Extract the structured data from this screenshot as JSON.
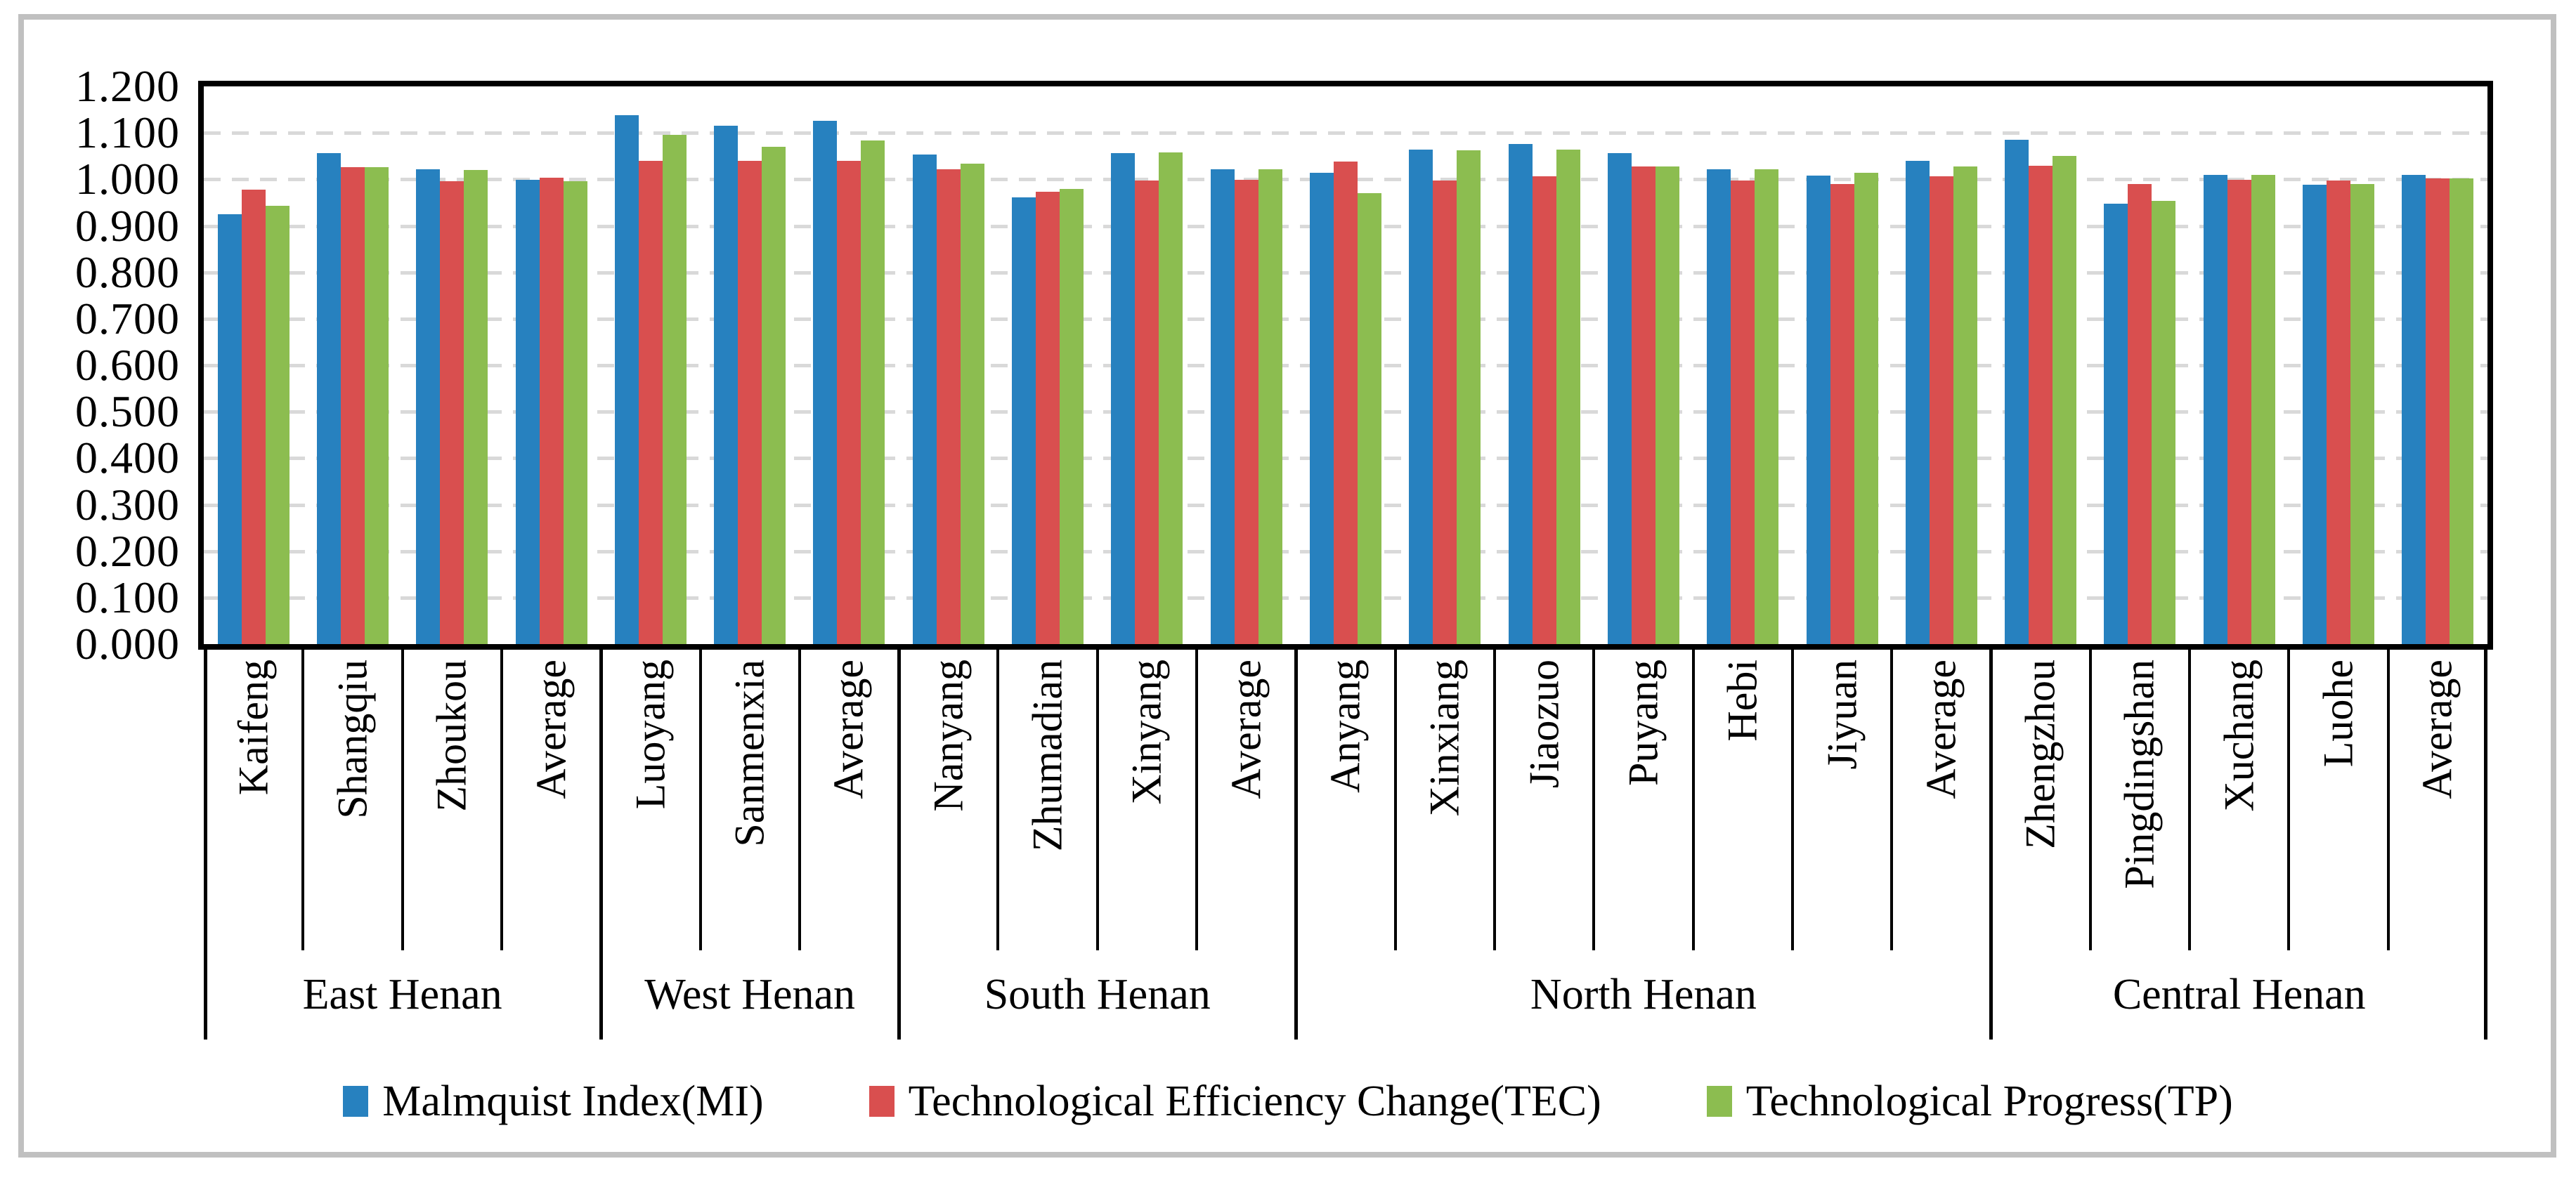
{
  "figure": {
    "frame_color": "#c0c0c0",
    "plot_border_color": "#000000",
    "gridline_color": "#d9d9d9",
    "background": "#ffffff"
  },
  "legend": [
    {
      "label": "Malmquist Index(MI)",
      "color": "#2781BF"
    },
    {
      "label": "Technological Efficiency Change(TEC)",
      "color": "#D94F4F"
    },
    {
      "label": "Technological Progress(TP)",
      "color": "#8CBD50"
    }
  ],
  "chart_data": {
    "type": "bar",
    "title": "",
    "xlabel": "",
    "ylabel": "",
    "ylim": [
      0,
      1.2
    ],
    "ytick_step": 0.1,
    "ytick_labels": [
      "0.000",
      "0.100",
      "0.200",
      "0.300",
      "0.400",
      "0.500",
      "0.600",
      "0.700",
      "0.800",
      "0.900",
      "1.000",
      "1.100",
      "1.200"
    ],
    "grid": "horizontal-dashed",
    "legend_position": "bottom",
    "categories": [
      "Kaifeng",
      "Shangqiu",
      "Zhoukou",
      "Average",
      "Luoyang",
      "Sanmenxia",
      "Average",
      "Nanyang",
      "Zhumadian",
      "Xinyang",
      "Average",
      "Anyang",
      "Xinxiang",
      "Jiaozuo",
      "Puyang",
      "Hebi",
      "Jiyuan",
      "Average",
      "Zhengzhou",
      "Pingdingshan",
      "Xuchang",
      "Luohe",
      "Average"
    ],
    "region_groups": [
      {
        "label": "East Henan",
        "span": 4
      },
      {
        "label": "West Henan",
        "span": 3
      },
      {
        "label": "South Henan",
        "span": 4
      },
      {
        "label": "North Henan",
        "span": 7
      },
      {
        "label": "Central Henan",
        "span": 5
      }
    ],
    "series": [
      {
        "name": "Malmquist Index(MI)",
        "color": "#2781BF",
        "values": [
          0.925,
          1.057,
          1.021,
          0.999,
          1.138,
          1.115,
          1.126,
          1.053,
          0.961,
          1.056,
          1.021,
          1.014,
          1.064,
          1.076,
          1.057,
          1.021,
          1.008,
          1.04,
          1.085,
          0.948,
          1.01,
          0.989,
          1.01
        ]
      },
      {
        "name": "Technological Efficiency Change(TEC)",
        "color": "#D94F4F",
        "values": [
          0.978,
          1.026,
          0.996,
          1.004,
          1.04,
          1.04,
          1.04,
          1.021,
          0.974,
          0.997,
          0.999,
          1.039,
          0.997,
          1.006,
          1.028,
          0.997,
          0.99,
          1.006,
          1.029,
          0.99,
          0.999,
          0.998,
          1.002
        ]
      },
      {
        "name": "Technological Progress(TP)",
        "color": "#8CBD50",
        "values": [
          0.943,
          1.026,
          1.02,
          0.996,
          1.095,
          1.07,
          1.083,
          1.034,
          0.979,
          1.058,
          1.022,
          0.971,
          1.063,
          1.064,
          1.028,
          1.021,
          1.014,
          1.028,
          1.051,
          0.953,
          1.01,
          0.99,
          1.002
        ]
      }
    ]
  }
}
